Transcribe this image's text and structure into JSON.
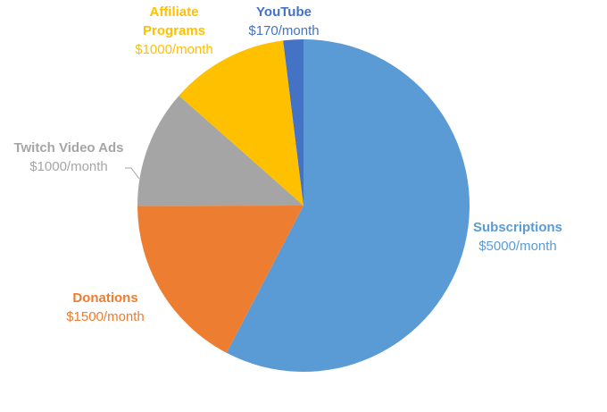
{
  "chart_data": {
    "type": "pie",
    "categories": [
      "Subscriptions",
      "Donations",
      "Twitch Video Ads",
      "Affiliate Programs",
      "YouTube"
    ],
    "values": [
      5000,
      1500,
      1000,
      1000,
      170
    ],
    "value_labels": [
      "$5000/month",
      "$1500/month",
      "$1000/month",
      "$1000/month",
      "$170/month"
    ],
    "colors": [
      "#5b9bd5",
      "#ed7d31",
      "#a5a5a5",
      "#ffc000",
      "#4472c4"
    ]
  }
}
